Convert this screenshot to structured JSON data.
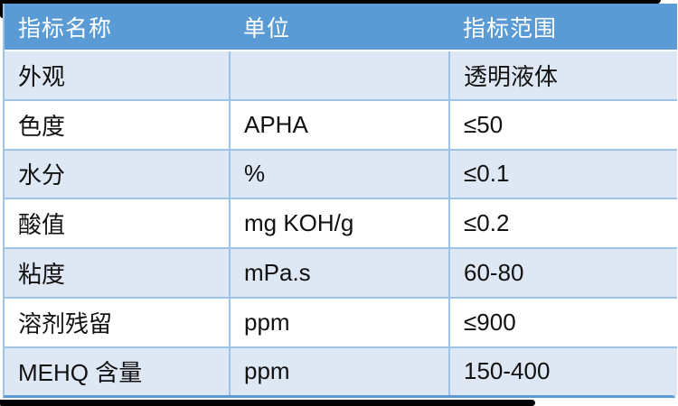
{
  "table": {
    "headers": [
      "指标名称",
      "单位",
      "指标范围"
    ],
    "rows": [
      {
        "name": "外观",
        "unit": "",
        "range": "透明液体"
      },
      {
        "name": "色度",
        "unit": "APHA",
        "range": "≤50"
      },
      {
        "name": "水分",
        "unit": "%",
        "range": "≤0.1"
      },
      {
        "name": "酸值",
        "unit": "mg KOH/g",
        "range": "≤0.2"
      },
      {
        "name": "粘度",
        "unit": "mPa.s",
        "range": "60-80"
      },
      {
        "name": "溶剂残留",
        "unit": "ppm",
        "range": "≤900"
      },
      {
        "name": "MEHQ 含量",
        "unit": "ppm",
        "range": "150-400"
      }
    ],
    "colors": {
      "header_bg": "#5B9BD5",
      "band_bg": "#DEE8F4",
      "row_bg": "#FFFFFF",
      "grid_line": "#9DC3E6",
      "outer_bottom_border": "#5B9BD5",
      "header_text": "#FFFFFF",
      "body_text": "#111111",
      "frame": "#000000"
    }
  }
}
